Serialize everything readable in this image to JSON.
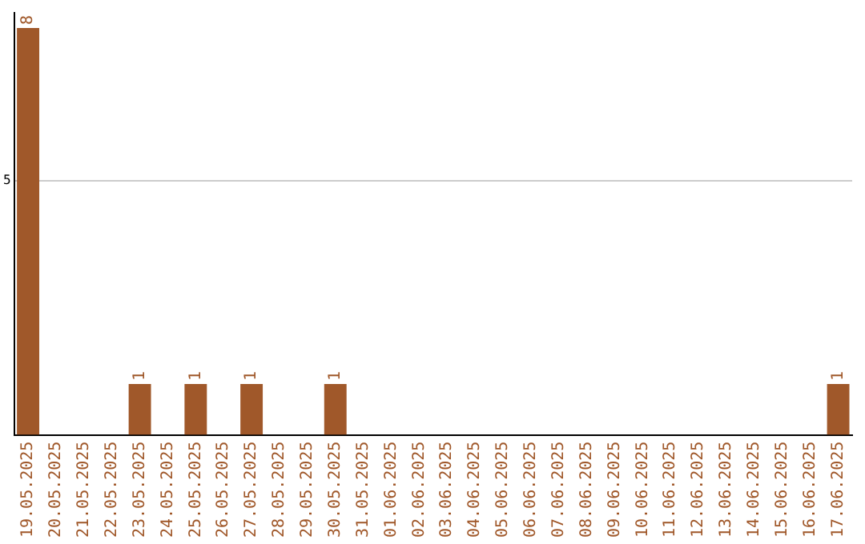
{
  "chart_data": {
    "type": "bar",
    "categories": [
      "19.05.2025",
      "20.05.2025",
      "21.05.2025",
      "22.05.2025",
      "23.05.2025",
      "24.05.2025",
      "25.05.2025",
      "26.05.2025",
      "27.05.2025",
      "28.05.2025",
      "29.05.2025",
      "30.05.2025",
      "31.05.2025",
      "01.06.2025",
      "02.06.2025",
      "03.06.2025",
      "04.06.2025",
      "05.06.2025",
      "06.06.2025",
      "07.06.2025",
      "08.06.2025",
      "09.06.2025",
      "10.06.2025",
      "11.06.2025",
      "12.06.2025",
      "13.06.2025",
      "14.06.2025",
      "15.06.2025",
      "16.06.2025",
      "17.06.2025"
    ],
    "values": [
      8,
      0,
      0,
      0,
      1,
      0,
      1,
      0,
      1,
      0,
      0,
      1,
      0,
      0,
      0,
      0,
      0,
      0,
      0,
      0,
      0,
      0,
      0,
      0,
      0,
      0,
      0,
      0,
      0,
      1
    ],
    "value_labels": [
      "8",
      null,
      null,
      null,
      "1",
      null,
      "1",
      null,
      "1",
      null,
      null,
      "1",
      null,
      null,
      null,
      null,
      null,
      null,
      null,
      null,
      null,
      null,
      null,
      null,
      null,
      null,
      null,
      null,
      null,
      "1"
    ],
    "color": "#a0582a",
    "ylim": [
      0,
      8.3
    ],
    "yticks": [
      5
    ],
    "grid": "y",
    "legend": false
  }
}
